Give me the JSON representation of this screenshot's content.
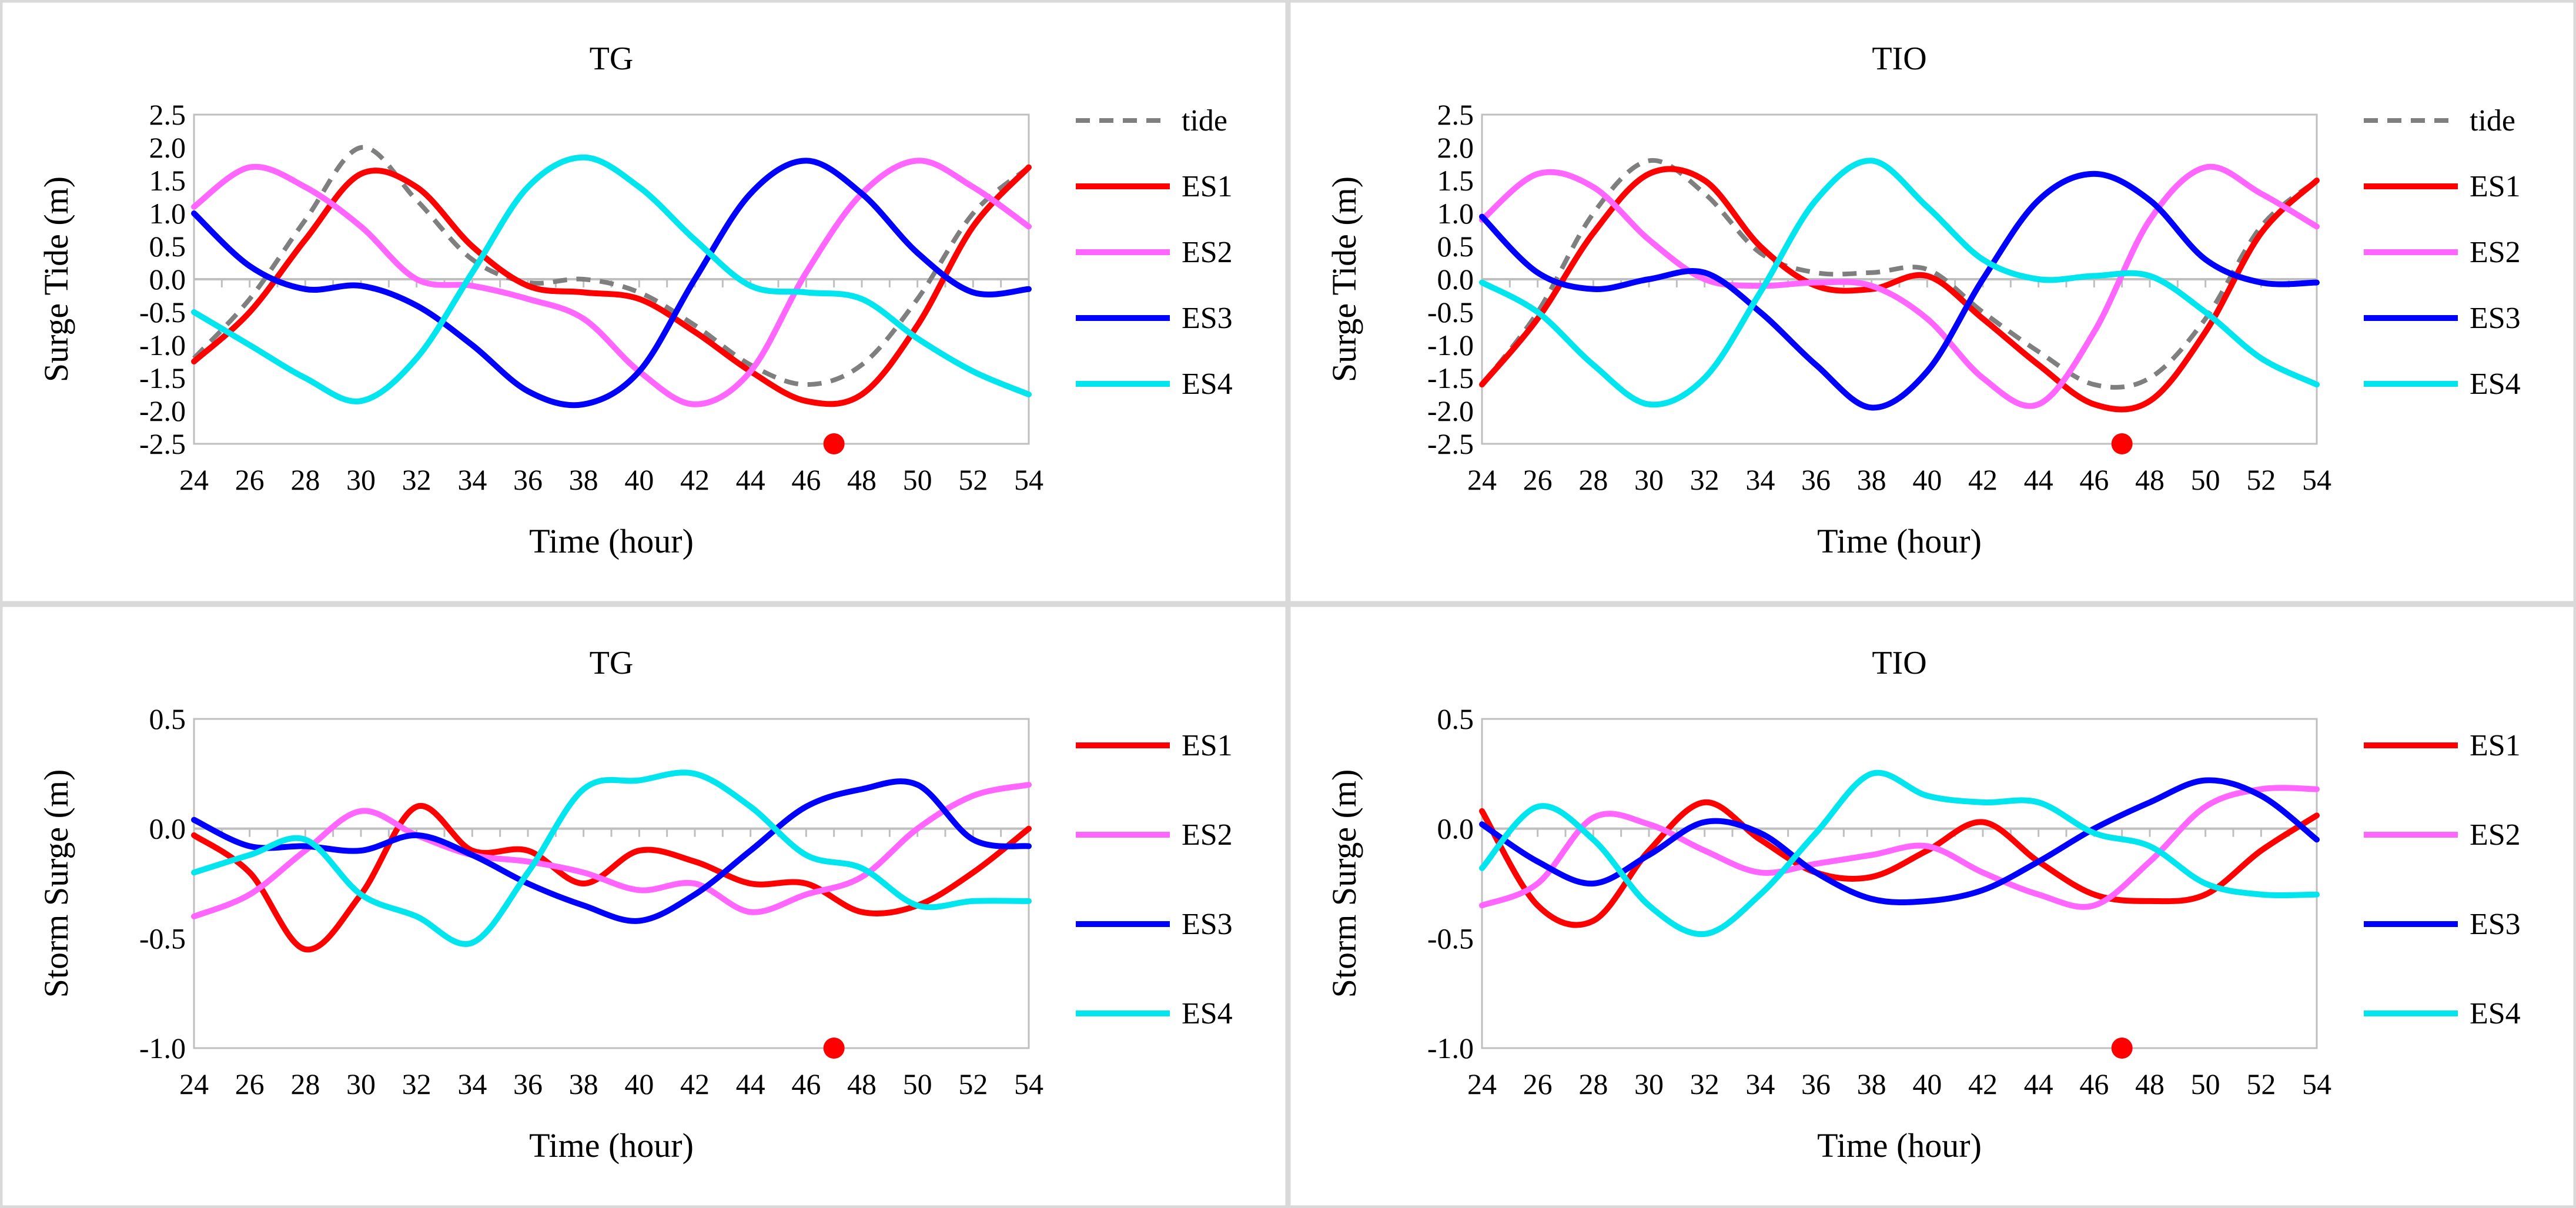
{
  "colors": {
    "tide": "#7f7f7f",
    "ES1": "#ff0000",
    "ES2": "#ff66ff",
    "ES3": "#0000ff",
    "ES4": "#00e5ee",
    "marker": "#ff0000",
    "frame": "#d9d9d9",
    "axis": "#bfbfbf"
  },
  "chart_data": [
    {
      "type": "line",
      "title": "TG",
      "xlabel": "Time (hour)",
      "ylabel": "Surge Tide (m)",
      "xlim": [
        24,
        54
      ],
      "ylim": [
        -2.5,
        2.5
      ],
      "xticks": [
        "24",
        "26",
        "28",
        "30",
        "32",
        "34",
        "36",
        "38",
        "40",
        "42",
        "44",
        "46",
        "48",
        "50",
        "52",
        "54"
      ],
      "yticks": [
        "2.5",
        "2.0",
        "1.5",
        "1.0",
        "0.5",
        "0.0",
        "-0.5",
        "-1.0",
        "-1.5",
        "-2.0",
        "-2.5"
      ],
      "grid": false,
      "legend_position": "right",
      "x": [
        24,
        26,
        28,
        30,
        32,
        34,
        36,
        38,
        40,
        42,
        44,
        46,
        48,
        50,
        52,
        54
      ],
      "series": [
        {
          "name": "tide",
          "style": "dashed",
          "values": [
            -1.2,
            -0.3,
            0.9,
            2.0,
            1.2,
            0.3,
            -0.05,
            0.0,
            -0.2,
            -0.7,
            -1.3,
            -1.6,
            -1.3,
            -0.3,
            1.0,
            1.7
          ]
        },
        {
          "name": "ES1",
          "values": [
            -1.25,
            -0.5,
            0.6,
            1.6,
            1.4,
            0.5,
            -0.1,
            -0.2,
            -0.3,
            -0.8,
            -1.4,
            -1.85,
            -1.75,
            -0.7,
            0.8,
            1.7
          ]
        },
        {
          "name": "ES2",
          "values": [
            1.1,
            1.7,
            1.4,
            0.8,
            0.0,
            -0.1,
            -0.3,
            -0.6,
            -1.4,
            -1.9,
            -1.4,
            0.1,
            1.3,
            1.8,
            1.4,
            0.8
          ]
        },
        {
          "name": "ES3",
          "values": [
            1.0,
            0.2,
            -0.15,
            -0.1,
            -0.4,
            -1.0,
            -1.7,
            -1.9,
            -1.4,
            0.0,
            1.3,
            1.8,
            1.3,
            0.4,
            -0.2,
            -0.15
          ]
        },
        {
          "name": "ES4",
          "values": [
            -0.5,
            -1.0,
            -1.5,
            -1.85,
            -1.2,
            0.1,
            1.4,
            1.85,
            1.4,
            0.6,
            -0.1,
            -0.2,
            -0.3,
            -0.9,
            -1.4,
            -1.75
          ]
        }
      ],
      "markers": [
        {
          "x": 47,
          "y": -2.5
        }
      ]
    },
    {
      "type": "line",
      "title": "TIO",
      "xlabel": "Time (hour)",
      "ylabel": "Surge Tide (m)",
      "xlim": [
        24,
        54
      ],
      "ylim": [
        -2.5,
        2.5
      ],
      "xticks": [
        "24",
        "26",
        "28",
        "30",
        "32",
        "34",
        "36",
        "38",
        "40",
        "42",
        "44",
        "46",
        "48",
        "50",
        "52",
        "54"
      ],
      "yticks": [
        "2.5",
        "2.0",
        "1.5",
        "1.0",
        "0.5",
        "0.0",
        "-0.5",
        "-1.0",
        "-1.5",
        "-2.0",
        "-2.5"
      ],
      "grid": false,
      "legend_position": "right",
      "x": [
        24,
        26,
        28,
        30,
        32,
        34,
        36,
        38,
        40,
        42,
        44,
        46,
        48,
        50,
        52,
        54
      ],
      "series": [
        {
          "name": "tide",
          "style": "dashed",
          "values": [
            -1.6,
            -0.5,
            1.0,
            1.8,
            1.3,
            0.4,
            0.1,
            0.1,
            0.15,
            -0.5,
            -1.1,
            -1.6,
            -1.5,
            -0.6,
            0.8,
            1.5
          ]
        },
        {
          "name": "ES1",
          "values": [
            -1.6,
            -0.6,
            0.7,
            1.6,
            1.5,
            0.5,
            -0.1,
            -0.15,
            0.05,
            -0.6,
            -1.3,
            -1.9,
            -1.85,
            -0.8,
            0.7,
            1.5
          ]
        },
        {
          "name": "ES2",
          "values": [
            0.9,
            1.6,
            1.4,
            0.6,
            0.0,
            -0.1,
            -0.05,
            -0.1,
            -0.6,
            -1.5,
            -1.9,
            -0.8,
            0.9,
            1.7,
            1.3,
            0.8
          ]
        },
        {
          "name": "ES3",
          "values": [
            0.95,
            0.1,
            -0.15,
            0.0,
            0.1,
            -0.5,
            -1.3,
            -1.95,
            -1.4,
            0.0,
            1.2,
            1.6,
            1.2,
            0.3,
            -0.05,
            -0.05
          ]
        },
        {
          "name": "ES4",
          "values": [
            -0.05,
            -0.5,
            -1.3,
            -1.9,
            -1.5,
            -0.2,
            1.2,
            1.8,
            1.1,
            0.3,
            0.0,
            0.05,
            0.05,
            -0.5,
            -1.2,
            -1.6
          ]
        }
      ],
      "markers": [
        {
          "x": 47,
          "y": -2.5
        }
      ]
    },
    {
      "type": "line",
      "title": "TG",
      "xlabel": "Time (hour)",
      "ylabel": "Storm Surge (m)",
      "xlim": [
        24,
        54
      ],
      "ylim": [
        -1.0,
        0.5
      ],
      "xticks": [
        "24",
        "26",
        "28",
        "30",
        "32",
        "34",
        "36",
        "38",
        "40",
        "42",
        "44",
        "46",
        "48",
        "50",
        "52",
        "54"
      ],
      "yticks": [
        "0.5",
        "0.0",
        "-0.5",
        "-1.0"
      ],
      "grid": false,
      "legend_position": "right",
      "x": [
        24,
        26,
        28,
        30,
        32,
        34,
        36,
        38,
        40,
        42,
        44,
        46,
        48,
        50,
        52,
        54
      ],
      "series": [
        {
          "name": "ES1",
          "values": [
            -0.03,
            -0.2,
            -0.55,
            -0.3,
            0.1,
            -0.1,
            -0.1,
            -0.25,
            -0.1,
            -0.15,
            -0.25,
            -0.25,
            -0.38,
            -0.35,
            -0.2,
            0.0
          ]
        },
        {
          "name": "ES2",
          "values": [
            -0.4,
            -0.3,
            -0.1,
            0.08,
            -0.03,
            -0.12,
            -0.15,
            -0.2,
            -0.28,
            -0.25,
            -0.38,
            -0.3,
            -0.22,
            0.0,
            0.15,
            0.2
          ]
        },
        {
          "name": "ES3",
          "values": [
            0.04,
            -0.08,
            -0.08,
            -0.1,
            -0.03,
            -0.12,
            -0.25,
            -0.35,
            -0.42,
            -0.3,
            -0.1,
            0.1,
            0.18,
            0.2,
            -0.05,
            -0.08
          ]
        },
        {
          "name": "ES4",
          "values": [
            -0.2,
            -0.12,
            -0.05,
            -0.3,
            -0.4,
            -0.52,
            -0.2,
            0.18,
            0.22,
            0.25,
            0.1,
            -0.12,
            -0.18,
            -0.35,
            -0.33,
            -0.33
          ]
        }
      ],
      "markers": [
        {
          "x": 47,
          "y": -1.0
        }
      ]
    },
    {
      "type": "line",
      "title": "TIO",
      "xlabel": "Time (hour)",
      "ylabel": "Storm Surge (m)",
      "xlim": [
        24,
        54
      ],
      "ylim": [
        -1.0,
        0.5
      ],
      "xticks": [
        "24",
        "26",
        "28",
        "30",
        "32",
        "34",
        "36",
        "38",
        "40",
        "42",
        "44",
        "46",
        "48",
        "50",
        "52",
        "54"
      ],
      "yticks": [
        "0.5",
        "0.0",
        "-0.5",
        "-1.0"
      ],
      "grid": false,
      "legend_position": "right",
      "x": [
        24,
        26,
        28,
        30,
        32,
        34,
        36,
        38,
        40,
        42,
        44,
        46,
        48,
        50,
        52,
        54
      ],
      "series": [
        {
          "name": "ES1",
          "values": [
            0.08,
            -0.35,
            -0.42,
            -0.1,
            0.12,
            -0.05,
            -0.2,
            -0.22,
            -0.1,
            0.03,
            -0.15,
            -0.3,
            -0.33,
            -0.3,
            -0.1,
            0.06
          ]
        },
        {
          "name": "ES2",
          "values": [
            -0.35,
            -0.25,
            0.05,
            0.02,
            -0.1,
            -0.2,
            -0.16,
            -0.12,
            -0.08,
            -0.2,
            -0.3,
            -0.35,
            -0.15,
            0.1,
            0.18,
            0.18
          ]
        },
        {
          "name": "ES3",
          "values": [
            0.02,
            -0.15,
            -0.25,
            -0.12,
            0.03,
            -0.02,
            -0.2,
            -0.32,
            -0.33,
            -0.28,
            -0.15,
            0.0,
            0.12,
            0.22,
            0.15,
            -0.05
          ]
        },
        {
          "name": "ES4",
          "values": [
            -0.18,
            0.1,
            -0.05,
            -0.35,
            -0.48,
            -0.3,
            -0.02,
            0.25,
            0.15,
            0.12,
            0.12,
            -0.02,
            -0.08,
            -0.25,
            -0.3,
            -0.3
          ]
        }
      ],
      "markers": [
        {
          "x": 47,
          "y": -1.0
        }
      ]
    }
  ]
}
